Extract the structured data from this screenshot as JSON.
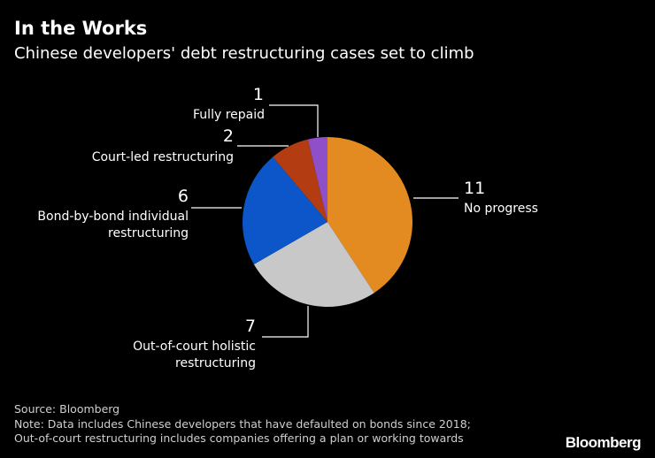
{
  "title": "In the Works",
  "subtitle": "Chinese developers' debt restructuring cases set to climb",
  "chart_data": {
    "type": "pie",
    "start_angle": "12 o'clock",
    "direction": "clockwise",
    "slices": [
      {
        "label": "No progress",
        "value": 11,
        "color": "#e38b21"
      },
      {
        "label": "Out-of-court holistic restructuring",
        "value": 7,
        "color": "#c8c8c8"
      },
      {
        "label": "Bond-by-bond individual restructuring",
        "value": 6,
        "color": "#0d56c9"
      },
      {
        "label": "Court-led restructuring",
        "value": 2,
        "color": "#b33c12"
      },
      {
        "label": "Fully repaid",
        "value": 1,
        "color": "#8e4fc9"
      }
    ]
  },
  "labels": {
    "no_progress": {
      "value": "11",
      "line1": "No progress"
    },
    "out_of_court": {
      "value": "7",
      "line1": "Out-of-court holistic",
      "line2": "restructuring"
    },
    "bond_by_bond": {
      "value": "6",
      "line1": "Bond-by-bond individual",
      "line2": "restructuring"
    },
    "court_led": {
      "value": "2",
      "line1": "Court-led restructuring"
    },
    "fully_repaid": {
      "value": "1",
      "line1": "Fully repaid"
    }
  },
  "footer": {
    "source": "Source: Bloomberg",
    "note1": "Note: Data includes Chinese developers that have defaulted on bonds since 2018;",
    "note2": "Out-of-court restructuring includes companies offering a plan or working towards"
  },
  "brand": "Bloomberg"
}
